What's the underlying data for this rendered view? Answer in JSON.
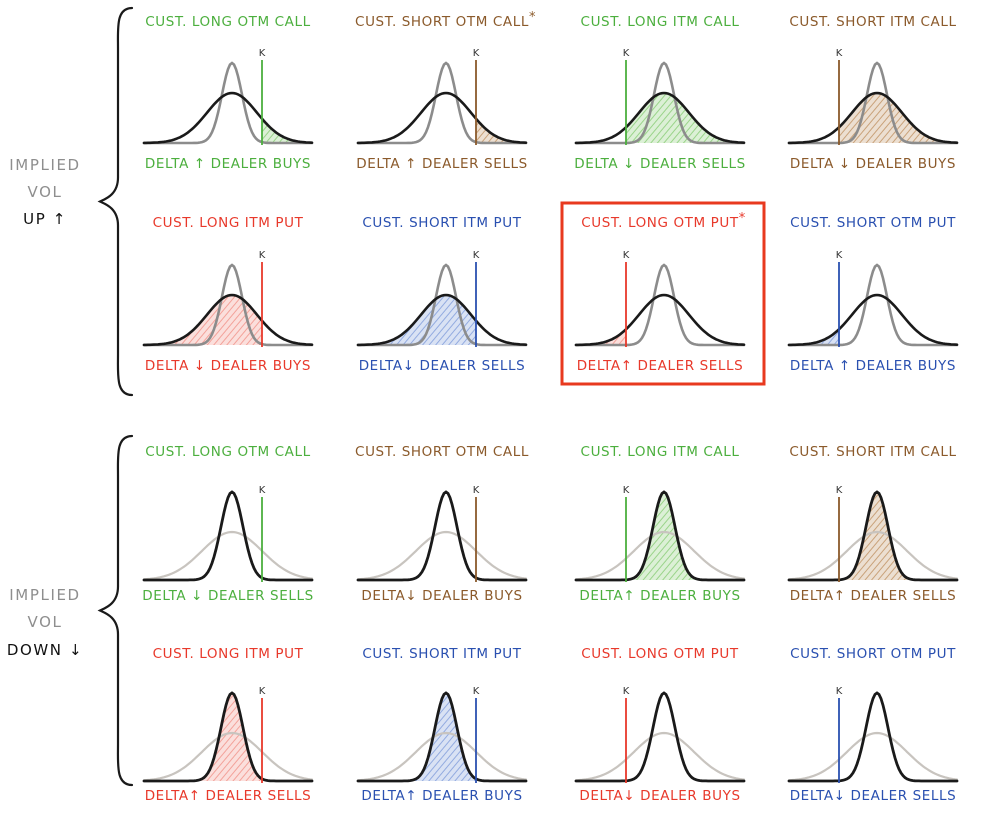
{
  "sections": [
    {
      "label_lines": [
        "IMPLIED",
        "VOL",
        "UP ↑"
      ],
      "tall": "wide",
      "rows": [
        [
          {
            "title": "CUST. LONG OTM CALL",
            "marker": "",
            "strike_label": "K",
            "strike": "right",
            "shade": "right",
            "bottom": "DELTA ↑  DEALER BUYS",
            "color": "#4caf3e",
            "fill": "#9ad48a",
            "highlight": false
          },
          {
            "title": "CUST. SHORT OTM CALL",
            "marker": "*",
            "strike_label": "K",
            "strike": "right",
            "shade": "right",
            "bottom": "DELTA ↑ DEALER SELLS",
            "color": "#8b5a2b",
            "fill": "#c9a27a",
            "highlight": false
          },
          {
            "title": "CUST. LONG ITM CALL",
            "marker": "",
            "strike_label": "K",
            "strike": "left",
            "shade": "right",
            "bottom": "DELTA ↓ DEALER SELLS",
            "color": "#4caf3e",
            "fill": "#9ad48a",
            "highlight": false
          },
          {
            "title": "CUST. SHORT ITM CALL",
            "marker": "",
            "strike_label": "K",
            "strike": "left",
            "shade": "right",
            "bottom": "DELTA ↓ DEALER BUYS",
            "color": "#8b5a2b",
            "fill": "#c9a27a",
            "highlight": false
          }
        ],
        [
          {
            "title": "CUST. LONG ITM PUT",
            "marker": "",
            "strike_label": "K",
            "strike": "right",
            "shade": "left",
            "bottom": "DELTA ↓ DEALER BUYS",
            "color": "#e8392b",
            "fill": "#f3a29a",
            "highlight": false
          },
          {
            "title": "CUST. SHORT ITM PUT",
            "marker": "",
            "strike_label": "K",
            "strike": "right",
            "shade": "left",
            "bottom": "DELTA↓ DEALER SELLS",
            "color": "#2a50b0",
            "fill": "#93abe0",
            "highlight": false
          },
          {
            "title": "CUST. LONG OTM PUT",
            "marker": "*",
            "strike_label": "K",
            "strike": "left",
            "shade": "left",
            "bottom": "DELTA↑ DEALER SELLS",
            "color": "#e8392b",
            "fill": "#f3a29a",
            "highlight": true
          },
          {
            "title": "CUST. SHORT OTM PUT",
            "marker": "",
            "strike_label": "K",
            "strike": "left",
            "shade": "left",
            "bottom": "DELTA ↑ DEALER BUYS",
            "color": "#2a50b0",
            "fill": "#93abe0",
            "highlight": false
          }
        ]
      ]
    },
    {
      "label_lines": [
        "IMPLIED",
        "VOL",
        "DOWN ↓"
      ],
      "tall": "narrow",
      "rows": [
        [
          {
            "title": "CUST. LONG OTM CALL",
            "marker": "",
            "strike_label": "K",
            "strike": "right",
            "shade": "right",
            "bottom": "DELTA ↓ DEALER SELLS",
            "color": "#4caf3e",
            "fill": "#9ad48a",
            "highlight": false
          },
          {
            "title": "CUST. SHORT OTM CALL",
            "marker": "",
            "strike_label": "K",
            "strike": "right",
            "shade": "right",
            "bottom": "DELTA↓ DEALER BUYS",
            "color": "#8b5a2b",
            "fill": "#c9a27a",
            "highlight": false
          },
          {
            "title": "CUST. LONG ITM CALL",
            "marker": "",
            "strike_label": "K",
            "strike": "left",
            "shade": "right",
            "bottom": "DELTA↑ DEALER BUYS",
            "color": "#4caf3e",
            "fill": "#9ad48a",
            "highlight": false
          },
          {
            "title": "CUST. SHORT ITM CALL",
            "marker": "",
            "strike_label": "K",
            "strike": "left",
            "shade": "right",
            "bottom": "DELTA↑ DEALER SELLS",
            "color": "#8b5a2b",
            "fill": "#c9a27a",
            "highlight": false
          }
        ],
        [
          {
            "title": "CUST. LONG ITM PUT",
            "marker": "",
            "strike_label": "K",
            "strike": "right",
            "shade": "left",
            "bottom": "DELTA↑ DEALER SELLS",
            "color": "#e8392b",
            "fill": "#f3a29a",
            "highlight": false
          },
          {
            "title": "CUST. SHORT ITM PUT",
            "marker": "",
            "strike_label": "K",
            "strike": "right",
            "shade": "left",
            "bottom": "DELTA↑ DEALER BUYS",
            "color": "#2a50b0",
            "fill": "#93abe0",
            "highlight": false
          },
          {
            "title": "CUST. LONG OTM PUT",
            "marker": "",
            "strike_label": "K",
            "strike": "left",
            "shade": "left",
            "bottom": "DELTA↓ DEALER BUYS",
            "color": "#e8392b",
            "fill": "#f3a29a",
            "highlight": false
          },
          {
            "title": "CUST. SHORT OTM PUT",
            "marker": "",
            "strike_label": "K",
            "strike": "left",
            "shade": "left",
            "bottom": "DELTA↓ DEALER SELLS",
            "color": "#2a50b0",
            "fill": "#93abe0",
            "highlight": false
          }
        ]
      ]
    }
  ],
  "colors": {
    "narrow_curve": "#1a1a1a",
    "wide_curve_up": "#1a1a1a",
    "narrow_curve_up": "#8c8c8c",
    "wide_curve_down": "#c8c4bf",
    "highlight_box": "#e8391f"
  }
}
